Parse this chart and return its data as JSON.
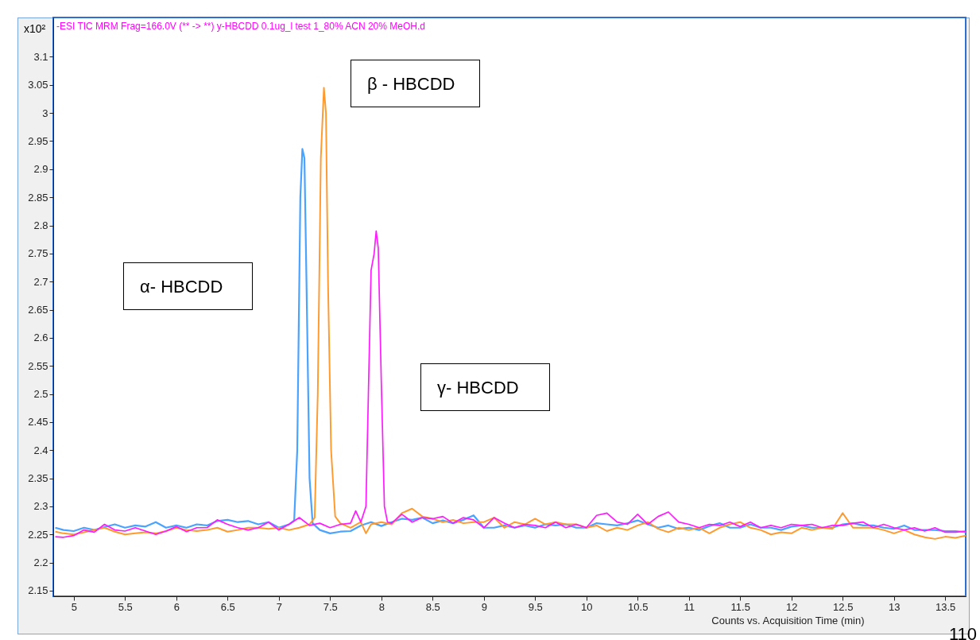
{
  "chart_data": {
    "type": "line",
    "title": "-ESI TIC MRM Frag=166.0V (** -> **) y-HBCDD 0.1ug_l test 1_80% ACN 20% MeOH.d",
    "xlabel": "Counts vs. Acquisition Time (min)",
    "xlim": [
      4.8,
      13.7
    ],
    "ylim": [
      2.14,
      3.17
    ],
    "xticks": [
      5,
      5.5,
      6,
      6.5,
      7,
      7.5,
      8,
      8.5,
      9,
      9.5,
      10,
      10.5,
      11,
      11.5,
      12,
      12.5,
      13,
      13.5
    ],
    "yticks": [
      2.15,
      2.2,
      2.25,
      2.3,
      2.35,
      2.4,
      2.45,
      2.5,
      2.55,
      2.6,
      2.65,
      2.7,
      2.75,
      2.8,
      2.85,
      2.9,
      2.95,
      3,
      3.05,
      3.1
    ],
    "annotations": [
      "x10²",
      "α- HBCDD",
      "β - HBCDD",
      "γ- HBCDD",
      "110"
    ],
    "series": [
      {
        "color": "#4aa3ff",
        "x": [
          4.82,
          4.9,
          5.0,
          5.1,
          5.2,
          5.3,
          5.4,
          5.5,
          5.6,
          5.7,
          5.8,
          5.9,
          6.0,
          6.1,
          6.2,
          6.3,
          6.4,
          6.5,
          6.6,
          6.7,
          6.8,
          6.9,
          7.0,
          7.1,
          7.15,
          7.18,
          7.21,
          7.23,
          7.25,
          7.27,
          7.3,
          7.33,
          7.4,
          7.5,
          7.6,
          7.7,
          7.8,
          7.9,
          8.0,
          8.1,
          8.2,
          8.3,
          8.4,
          8.5,
          8.6,
          8.7,
          8.8,
          8.9,
          9.0,
          9.1,
          9.2,
          9.3,
          9.4,
          9.5,
          9.6,
          9.7,
          9.8,
          9.9,
          10.0,
          10.1,
          10.2,
          10.3,
          10.4,
          10.5,
          10.6,
          10.7,
          10.8,
          10.9,
          11.0,
          11.1,
          11.2,
          11.3,
          11.4,
          11.5,
          11.6,
          11.7,
          11.8,
          11.9,
          12.0,
          12.1,
          12.2,
          12.3,
          12.4,
          12.5,
          12.6,
          12.7,
          12.8,
          12.9,
          13.0,
          13.1,
          13.2,
          13.3,
          13.4,
          13.5,
          13.6,
          13.7
        ],
        "values": [
          2.262,
          2.258,
          2.256,
          2.262,
          2.258,
          2.263,
          2.268,
          2.262,
          2.266,
          2.264,
          2.272,
          2.262,
          2.266,
          2.262,
          2.268,
          2.266,
          2.274,
          2.276,
          2.272,
          2.274,
          2.268,
          2.272,
          2.262,
          2.268,
          2.275,
          2.4,
          2.85,
          2.936,
          2.92,
          2.7,
          2.35,
          2.27,
          2.258,
          2.252,
          2.255,
          2.256,
          2.266,
          2.272,
          2.265,
          2.272,
          2.278,
          2.276,
          2.28,
          2.27,
          2.275,
          2.27,
          2.276,
          2.284,
          2.262,
          2.262,
          2.266,
          2.262,
          2.266,
          2.262,
          2.268,
          2.266,
          2.268,
          2.262,
          2.262,
          2.27,
          2.268,
          2.266,
          2.27,
          2.275,
          2.268,
          2.262,
          2.266,
          2.26,
          2.262,
          2.258,
          2.265,
          2.27,
          2.262,
          2.262,
          2.268,
          2.262,
          2.262,
          2.258,
          2.264,
          2.266,
          2.262,
          2.262,
          2.262,
          2.268,
          2.27,
          2.266,
          2.266,
          2.262,
          2.26,
          2.266,
          2.258,
          2.258,
          2.258,
          2.256,
          2.256,
          2.254
        ]
      },
      {
        "color": "#ff9a2e",
        "x": [
          4.82,
          4.9,
          5.0,
          5.1,
          5.2,
          5.3,
          5.4,
          5.5,
          5.6,
          5.7,
          5.8,
          5.9,
          6.0,
          6.1,
          6.2,
          6.3,
          6.4,
          6.5,
          6.6,
          6.7,
          6.8,
          6.9,
          7.0,
          7.1,
          7.2,
          7.3,
          7.35,
          7.38,
          7.41,
          7.44,
          7.46,
          7.48,
          7.51,
          7.55,
          7.6,
          7.7,
          7.8,
          7.85,
          7.9,
          8.0,
          8.1,
          8.2,
          8.3,
          8.4,
          8.5,
          8.6,
          8.7,
          8.8,
          8.9,
          9.0,
          9.1,
          9.2,
          9.3,
          9.4,
          9.5,
          9.6,
          9.7,
          9.8,
          9.9,
          10.0,
          10.1,
          10.2,
          10.3,
          10.4,
          10.5,
          10.6,
          10.7,
          10.8,
          10.9,
          11.0,
          11.1,
          11.2,
          11.3,
          11.4,
          11.5,
          11.6,
          11.7,
          11.8,
          11.9,
          12.0,
          12.1,
          12.2,
          12.3,
          12.4,
          12.5,
          12.6,
          12.7,
          12.8,
          12.9,
          13.0,
          13.1,
          13.2,
          13.3,
          13.4,
          13.5,
          13.6,
          13.7
        ],
        "values": [
          2.255,
          2.252,
          2.25,
          2.254,
          2.258,
          2.262,
          2.255,
          2.25,
          2.252,
          2.254,
          2.252,
          2.256,
          2.262,
          2.258,
          2.256,
          2.258,
          2.262,
          2.255,
          2.258,
          2.262,
          2.262,
          2.26,
          2.262,
          2.258,
          2.262,
          2.268,
          2.28,
          2.5,
          2.92,
          3.045,
          3.0,
          2.7,
          2.4,
          2.282,
          2.27,
          2.262,
          2.272,
          2.252,
          2.268,
          2.272,
          2.268,
          2.288,
          2.296,
          2.282,
          2.278,
          2.272,
          2.276,
          2.27,
          2.272,
          2.272,
          2.28,
          2.262,
          2.272,
          2.268,
          2.278,
          2.268,
          2.272,
          2.268,
          2.268,
          2.262,
          2.266,
          2.256,
          2.262,
          2.258,
          2.266,
          2.272,
          2.26,
          2.254,
          2.262,
          2.258,
          2.262,
          2.252,
          2.262,
          2.268,
          2.272,
          2.262,
          2.258,
          2.25,
          2.254,
          2.252,
          2.262,
          2.258,
          2.262,
          2.26,
          2.288,
          2.262,
          2.262,
          2.262,
          2.258,
          2.252,
          2.258,
          2.25,
          2.245,
          2.242,
          2.246,
          2.244,
          2.248
        ]
      },
      {
        "color": "#ff1aff",
        "x": [
          4.82,
          4.9,
          5.0,
          5.1,
          5.2,
          5.3,
          5.4,
          5.5,
          5.6,
          5.7,
          5.8,
          5.9,
          6.0,
          6.1,
          6.2,
          6.3,
          6.4,
          6.5,
          6.6,
          6.7,
          6.8,
          6.9,
          7.0,
          7.1,
          7.2,
          7.3,
          7.4,
          7.5,
          7.6,
          7.7,
          7.75,
          7.8,
          7.85,
          7.9,
          7.93,
          7.95,
          7.97,
          8.0,
          8.03,
          8.06,
          8.1,
          8.2,
          8.3,
          8.4,
          8.5,
          8.6,
          8.7,
          8.8,
          8.9,
          9.0,
          9.1,
          9.2,
          9.3,
          9.4,
          9.5,
          9.6,
          9.7,
          9.8,
          9.9,
          10.0,
          10.1,
          10.2,
          10.3,
          10.4,
          10.5,
          10.6,
          10.7,
          10.8,
          10.9,
          11.0,
          11.1,
          11.2,
          11.3,
          11.4,
          11.5,
          11.6,
          11.7,
          11.8,
          11.9,
          12.0,
          12.1,
          12.2,
          12.3,
          12.4,
          12.5,
          12.6,
          12.7,
          12.8,
          12.9,
          13.0,
          13.1,
          13.2,
          13.3,
          13.4,
          13.5,
          13.6,
          13.7
        ],
        "values": [
          2.246,
          2.245,
          2.248,
          2.258,
          2.254,
          2.268,
          2.258,
          2.256,
          2.262,
          2.256,
          2.25,
          2.256,
          2.264,
          2.255,
          2.262,
          2.262,
          2.276,
          2.268,
          2.262,
          2.258,
          2.262,
          2.272,
          2.258,
          2.268,
          2.28,
          2.266,
          2.27,
          2.262,
          2.268,
          2.27,
          2.292,
          2.272,
          2.3,
          2.72,
          2.75,
          2.79,
          2.76,
          2.52,
          2.3,
          2.272,
          2.27,
          2.286,
          2.272,
          2.28,
          2.278,
          2.282,
          2.27,
          2.28,
          2.276,
          2.262,
          2.28,
          2.27,
          2.262,
          2.268,
          2.266,
          2.262,
          2.272,
          2.262,
          2.268,
          2.262,
          2.284,
          2.288,
          2.272,
          2.268,
          2.286,
          2.268,
          2.282,
          2.29,
          2.272,
          2.268,
          2.262,
          2.268,
          2.266,
          2.272,
          2.264,
          2.272,
          2.262,
          2.266,
          2.262,
          2.268,
          2.266,
          2.268,
          2.262,
          2.266,
          2.266,
          2.27,
          2.272,
          2.262,
          2.268,
          2.262,
          2.258,
          2.262,
          2.256,
          2.262,
          2.254,
          2.254,
          2.256
        ]
      }
    ]
  }
}
